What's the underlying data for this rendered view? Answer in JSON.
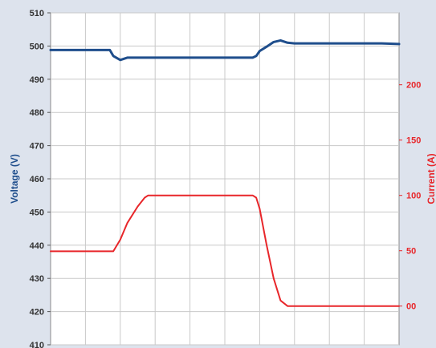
{
  "chart_data": {
    "type": "line",
    "x": [
      0,
      4,
      8,
      12,
      14,
      17,
      18,
      20,
      22,
      25,
      27,
      28,
      29,
      30,
      32,
      35,
      40,
      45,
      50,
      55,
      58,
      59,
      60,
      62,
      64,
      66,
      68,
      70,
      72,
      75,
      80,
      85,
      90,
      95,
      100
    ],
    "xlim": [
      0,
      100
    ],
    "y_left": {
      "label": "Voltage (V)",
      "ticks": [
        410,
        420,
        430,
        440,
        450,
        460,
        470,
        480,
        490,
        500,
        510
      ],
      "range": [
        410,
        510
      ],
      "color": "#1f4e8c"
    },
    "y_right": {
      "label": "Current (A)",
      "ticks": [
        0,
        50,
        100,
        150,
        200
      ],
      "tick_labels": [
        "00",
        "50",
        "100",
        "150",
        "200"
      ],
      "range": [
        -35,
        265
      ],
      "color": "#e8262a"
    },
    "series": [
      {
        "axis": "left",
        "color": "#1f4e8c",
        "values": [
          498.8,
          498.8,
          498.8,
          498.8,
          498.8,
          498.8,
          497.0,
          495.8,
          496.5,
          496.5,
          496.5,
          496.5,
          496.5,
          496.5,
          496.5,
          496.5,
          496.5,
          496.5,
          496.5,
          496.5,
          496.5,
          497.0,
          498.5,
          499.8,
          501.2,
          501.7,
          501.0,
          500.8,
          500.8,
          500.8,
          500.8,
          500.8,
          500.8,
          500.8,
          500.6
        ]
      },
      {
        "axis": "right",
        "color": "#e8262a",
        "values": [
          49.5,
          49.5,
          49.5,
          49.5,
          49.5,
          49.5,
          49.5,
          60,
          75,
          90,
          98,
          100,
          100,
          100,
          100,
          100,
          100,
          100,
          100,
          100,
          100,
          98,
          88,
          55,
          25,
          5,
          0,
          0,
          0,
          0,
          0,
          0,
          0,
          0,
          0
        ]
      }
    ],
    "grid": true
  }
}
